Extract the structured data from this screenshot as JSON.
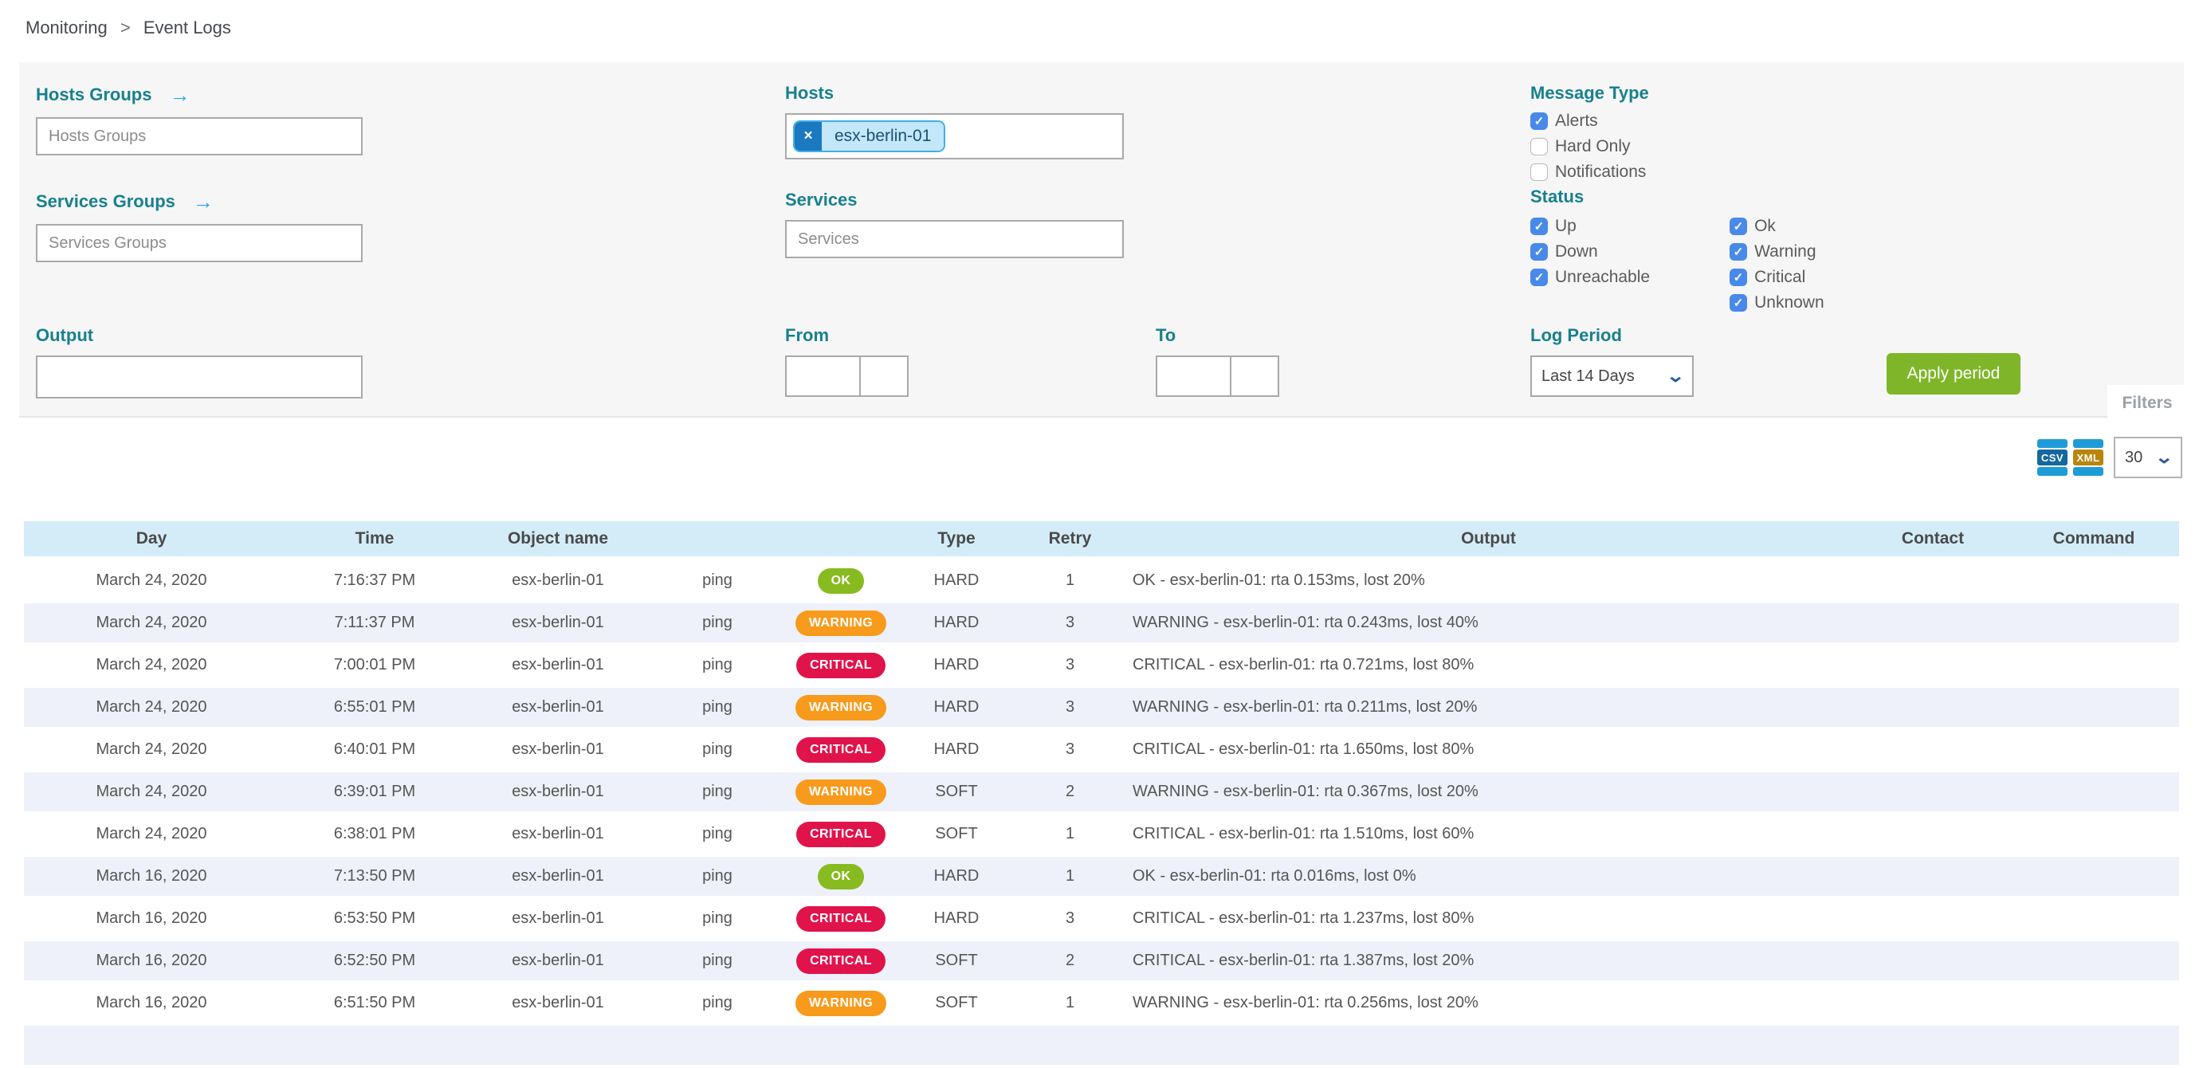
{
  "breadcrumb": {
    "items": [
      "Monitoring",
      "Event Logs"
    ],
    "separator": ">"
  },
  "filters": {
    "hosts_groups": {
      "label": "Hosts Groups",
      "arrow_icon": "→",
      "placeholder": "Hosts Groups",
      "value": ""
    },
    "services_groups": {
      "label": "Services Groups",
      "arrow_icon": "→",
      "placeholder": "Services Groups",
      "value": ""
    },
    "hosts": {
      "label": "Hosts",
      "chips": [
        {
          "value": "esx-berlin-01",
          "remove_icon": "×"
        }
      ]
    },
    "services": {
      "label": "Services",
      "placeholder": "Services",
      "value": ""
    },
    "output": {
      "label": "Output",
      "value": ""
    },
    "from": {
      "label": "From",
      "date_value": "",
      "time_value": ""
    },
    "to": {
      "label": "To",
      "date_value": "",
      "time_value": ""
    },
    "message_type": {
      "label": "Message Type",
      "options": [
        {
          "label": "Alerts",
          "checked": true
        },
        {
          "label": "Hard Only",
          "checked": false
        },
        {
          "label": "Notifications",
          "checked": false
        }
      ]
    },
    "status": {
      "label": "Status",
      "host_statuses": [
        {
          "label": "Up",
          "checked": true
        },
        {
          "label": "Down",
          "checked": true
        },
        {
          "label": "Unreachable",
          "checked": true
        }
      ],
      "service_statuses": [
        {
          "label": "Ok",
          "checked": true
        },
        {
          "label": "Warning",
          "checked": true
        },
        {
          "label": "Critical",
          "checked": true
        },
        {
          "label": "Unknown",
          "checked": true
        }
      ]
    },
    "log_period": {
      "label": "Log Period",
      "selected": "Last 14 Days",
      "chevron_icon": "⌄"
    },
    "apply_button": "Apply period",
    "panel_tab": "Filters"
  },
  "toolbar": {
    "csv_icon_label": "CSV",
    "xml_icon_label": "XML",
    "page_size": "30",
    "chevron_icon": "⌄"
  },
  "table": {
    "headers": [
      "Day",
      "Time",
      "Object name",
      "",
      "",
      "Type",
      "Retry",
      "Output",
      "Contact",
      "Command"
    ],
    "rows": [
      {
        "day": "March 24, 2020",
        "time": "7:16:37 PM",
        "object": "esx-berlin-01",
        "service": "ping",
        "status": "OK",
        "type": "HARD",
        "retry": "1",
        "output": "OK - esx-berlin-01: rta 0.153ms, lost 20%",
        "contact": "",
        "command": ""
      },
      {
        "day": "March 24, 2020",
        "time": "7:11:37 PM",
        "object": "esx-berlin-01",
        "service": "ping",
        "status": "WARNING",
        "type": "HARD",
        "retry": "3",
        "output": "WARNING - esx-berlin-01: rta 0.243ms, lost 40%",
        "contact": "",
        "command": ""
      },
      {
        "day": "March 24, 2020",
        "time": "7:00:01 PM",
        "object": "esx-berlin-01",
        "service": "ping",
        "status": "CRITICAL",
        "type": "HARD",
        "retry": "3",
        "output": "CRITICAL - esx-berlin-01: rta 0.721ms, lost 80%",
        "contact": "",
        "command": ""
      },
      {
        "day": "March 24, 2020",
        "time": "6:55:01 PM",
        "object": "esx-berlin-01",
        "service": "ping",
        "status": "WARNING",
        "type": "HARD",
        "retry": "3",
        "output": "WARNING - esx-berlin-01: rta 0.211ms, lost 20%",
        "contact": "",
        "command": ""
      },
      {
        "day": "March 24, 2020",
        "time": "6:40:01 PM",
        "object": "esx-berlin-01",
        "service": "ping",
        "status": "CRITICAL",
        "type": "HARD",
        "retry": "3",
        "output": "CRITICAL - esx-berlin-01: rta 1.650ms, lost 80%",
        "contact": "",
        "command": ""
      },
      {
        "day": "March 24, 2020",
        "time": "6:39:01 PM",
        "object": "esx-berlin-01",
        "service": "ping",
        "status": "WARNING",
        "type": "SOFT",
        "retry": "2",
        "output": "WARNING - esx-berlin-01: rta 0.367ms, lost 20%",
        "contact": "",
        "command": ""
      },
      {
        "day": "March 24, 2020",
        "time": "6:38:01 PM",
        "object": "esx-berlin-01",
        "service": "ping",
        "status": "CRITICAL",
        "type": "SOFT",
        "retry": "1",
        "output": "CRITICAL - esx-berlin-01: rta 1.510ms, lost 60%",
        "contact": "",
        "command": ""
      },
      {
        "day": "March 16, 2020",
        "time": "7:13:50 PM",
        "object": "esx-berlin-01",
        "service": "ping",
        "status": "OK",
        "type": "HARD",
        "retry": "1",
        "output": "OK - esx-berlin-01: rta 0.016ms, lost 0%",
        "contact": "",
        "command": ""
      },
      {
        "day": "March 16, 2020",
        "time": "6:53:50 PM",
        "object": "esx-berlin-01",
        "service": "ping",
        "status": "CRITICAL",
        "type": "HARD",
        "retry": "3",
        "output": "CRITICAL - esx-berlin-01: rta 1.237ms, lost 80%",
        "contact": "",
        "command": ""
      },
      {
        "day": "March 16, 2020",
        "time": "6:52:50 PM",
        "object": "esx-berlin-01",
        "service": "ping",
        "status": "CRITICAL",
        "type": "SOFT",
        "retry": "2",
        "output": "CRITICAL - esx-berlin-01: rta 1.387ms, lost 20%",
        "contact": "",
        "command": ""
      },
      {
        "day": "March 16, 2020",
        "time": "6:51:50 PM",
        "object": "esx-berlin-01",
        "service": "ping",
        "status": "WARNING",
        "type": "SOFT",
        "retry": "1",
        "output": "WARNING - esx-berlin-01: rta 0.256ms, lost 20%",
        "contact": "",
        "command": ""
      }
    ]
  },
  "colors": {
    "section_label_teal": "#18808d",
    "checkbox_blue": "#4889ea",
    "apply_button_green": "#7fb629",
    "badge_ok_green": "#87bb1f",
    "badge_warning_orange": "#f89a1c",
    "badge_critical_red": "#e1134b",
    "table_header_blue": "#d4ecf8",
    "table_alt_row": "#eef1fa",
    "chip_blue": "#1a79c0"
  }
}
